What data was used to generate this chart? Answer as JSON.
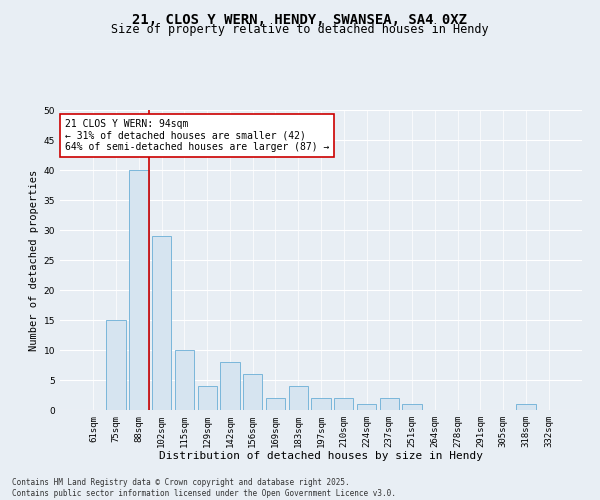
{
  "title1": "21, CLOS Y WERN, HENDY, SWANSEA, SA4 0XZ",
  "title2": "Size of property relative to detached houses in Hendy",
  "xlabel": "Distribution of detached houses by size in Hendy",
  "ylabel": "Number of detached properties",
  "categories": [
    "61sqm",
    "75sqm",
    "88sqm",
    "102sqm",
    "115sqm",
    "129sqm",
    "142sqm",
    "156sqm",
    "169sqm",
    "183sqm",
    "197sqm",
    "210sqm",
    "224sqm",
    "237sqm",
    "251sqm",
    "264sqm",
    "278sqm",
    "291sqm",
    "305sqm",
    "318sqm",
    "332sqm"
  ],
  "values": [
    0,
    15,
    40,
    29,
    10,
    4,
    8,
    6,
    2,
    4,
    2,
    2,
    1,
    2,
    1,
    0,
    0,
    0,
    0,
    1,
    0
  ],
  "bar_color": "#d6e4f0",
  "bar_edgecolor": "#6aaed6",
  "highlight_line_color": "#cc0000",
  "annotation_text": "21 CLOS Y WERN: 94sqm\n← 31% of detached houses are smaller (42)\n64% of semi-detached houses are larger (87) →",
  "annotation_box_color": "#ffffff",
  "annotation_box_edgecolor": "#cc0000",
  "ylim": [
    0,
    50
  ],
  "yticks": [
    0,
    5,
    10,
    15,
    20,
    25,
    30,
    35,
    40,
    45,
    50
  ],
  "footer": "Contains HM Land Registry data © Crown copyright and database right 2025.\nContains public sector information licensed under the Open Government Licence v3.0.",
  "background_color": "#e8eef4",
  "plot_bg_color": "#e8eef4",
  "grid_color": "#ffffff",
  "title1_fontsize": 10,
  "title2_fontsize": 8.5,
  "xlabel_fontsize": 8,
  "ylabel_fontsize": 7.5,
  "tick_fontsize": 6.5,
  "annot_fontsize": 7,
  "footer_fontsize": 5.5
}
